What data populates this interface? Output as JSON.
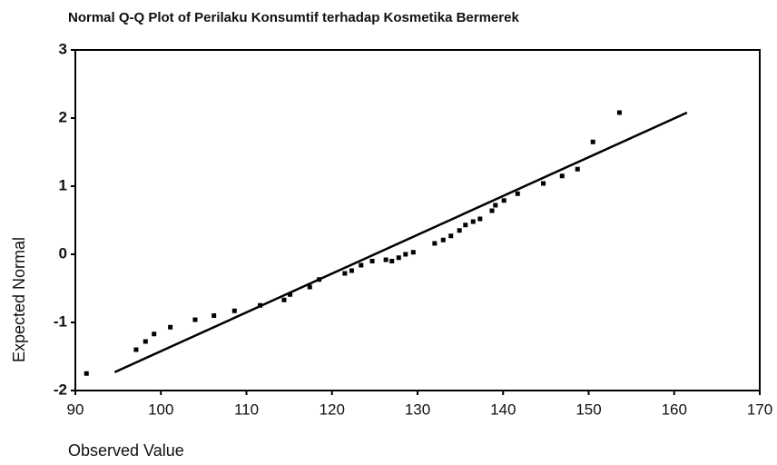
{
  "chart_data": {
    "type": "scatter",
    "title": "Normal Q-Q Plot of Perilaku Konsumtif terhadap Kosmetika Bermerek",
    "x_label": "Observed Value",
    "y_label": "Expected Normal",
    "x": [
      91.3,
      97.1,
      98.2,
      99.2,
      101.1,
      104,
      106.2,
      108.6,
      111.6,
      114.4,
      115.1,
      117.4,
      118.5,
      121.5,
      122.3,
      123.4,
      124.7,
      126.3,
      127,
      127.8,
      128.6,
      129.5,
      132,
      133,
      133.9,
      134.9,
      135.6,
      136.5,
      137.3,
      138.7,
      139.1,
      140.1,
      141.7,
      144.7,
      146.9,
      148.7,
      150.5,
      153.6
    ],
    "values": [
      -1.75,
      -1.4,
      -1.28,
      -1.17,
      -1.07,
      -0.96,
      -0.9,
      -0.83,
      -0.75,
      -0.67,
      -0.59,
      -0.48,
      -0.37,
      -0.28,
      -0.24,
      -0.16,
      -0.1,
      -0.08,
      -0.1,
      -0.05,
      0.0,
      0.03,
      0.16,
      0.21,
      0.27,
      0.35,
      0.43,
      0.48,
      0.52,
      0.64,
      0.72,
      0.79,
      0.89,
      1.04,
      1.15,
      1.25,
      1.65,
      2.08
    ],
    "color": "#000000",
    "line": {
      "x": [
        94.6,
        161.5
      ],
      "values": [
        -1.73,
        2.08
      ],
      "color": "#000000"
    },
    "xlim": [
      90,
      170
    ],
    "xticks": [
      90,
      100,
      110,
      120,
      130,
      140,
      150,
      160,
      170
    ],
    "ylim": [
      -2,
      3
    ],
    "yticks": [
      -2,
      -1,
      0,
      1,
      2,
      3
    ]
  }
}
